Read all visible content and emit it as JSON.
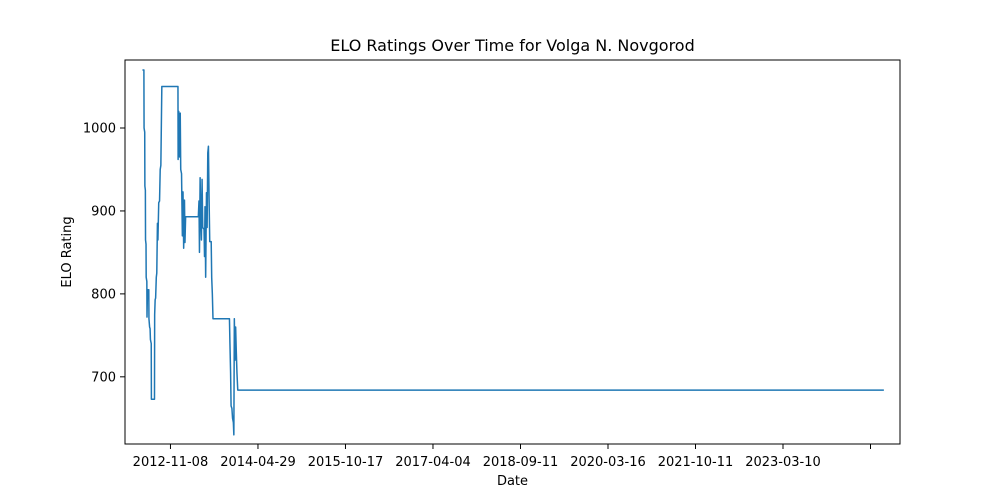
{
  "chart_data": {
    "type": "line",
    "title": "ELO Ratings Over Time for Volga N. Novgorod",
    "xlabel": "Date",
    "ylabel": "ELO Rating",
    "xlim": [
      "2012-02-03",
      "2025-02-10"
    ],
    "ylim": [
      619,
      1082
    ],
    "grid": false,
    "x_ticks": [
      "2012-11-08",
      "2014-04-29",
      "2015-10-17",
      "2017-04-04",
      "2018-09-11",
      "2020-03-16",
      "2021-10-11",
      "2023-03-10",
      ""
    ],
    "y_ticks": [
      700,
      800,
      900,
      1000
    ],
    "series": [
      {
        "color": "#1f77b4",
        "points": [
          [
            "2012-05-20",
            1070
          ],
          [
            "2012-05-29",
            1070
          ],
          [
            "2012-05-30",
            1000
          ],
          [
            "2012-06-03",
            995
          ],
          [
            "2012-06-04",
            930
          ],
          [
            "2012-06-07",
            925
          ],
          [
            "2012-06-08",
            865
          ],
          [
            "2012-06-11",
            860
          ],
          [
            "2012-06-12",
            820
          ],
          [
            "2012-06-16",
            815
          ],
          [
            "2012-06-17",
            772
          ],
          [
            "2012-06-20",
            805
          ],
          [
            "2012-06-28",
            805
          ],
          [
            "2012-06-29",
            770
          ],
          [
            "2012-07-03",
            760
          ],
          [
            "2012-07-06",
            758
          ],
          [
            "2012-07-08",
            745
          ],
          [
            "2012-07-13",
            740
          ],
          [
            "2012-07-14",
            673
          ],
          [
            "2012-08-02",
            673
          ],
          [
            "2012-08-03",
            775
          ],
          [
            "2012-08-06",
            793
          ],
          [
            "2012-08-09",
            795
          ],
          [
            "2012-08-13",
            820
          ],
          [
            "2012-08-16",
            825
          ],
          [
            "2012-08-20",
            885
          ],
          [
            "2012-08-23",
            865
          ],
          [
            "2012-08-28",
            910
          ],
          [
            "2012-09-02",
            912
          ],
          [
            "2012-09-06",
            950
          ],
          [
            "2012-09-10",
            955
          ],
          [
            "2012-09-16",
            1050
          ],
          [
            "2012-12-24",
            1050
          ],
          [
            "2012-12-25",
            962
          ],
          [
            "2012-12-29",
            1020
          ],
          [
            "2013-01-03",
            965
          ],
          [
            "2013-01-07",
            1018
          ],
          [
            "2013-01-10",
            950
          ],
          [
            "2013-01-15",
            945
          ],
          [
            "2013-01-20",
            870
          ],
          [
            "2013-01-24",
            923
          ],
          [
            "2013-01-28",
            855
          ],
          [
            "2013-02-02",
            913
          ],
          [
            "2013-02-05",
            862
          ],
          [
            "2013-02-09",
            893
          ],
          [
            "2013-04-28",
            893
          ],
          [
            "2013-05-02",
            912
          ],
          [
            "2013-05-05",
            850
          ],
          [
            "2013-05-09",
            940
          ],
          [
            "2013-05-13",
            893
          ],
          [
            "2013-05-17",
            865
          ],
          [
            "2013-05-21",
            938
          ],
          [
            "2013-05-25",
            880
          ],
          [
            "2013-06-02",
            878
          ],
          [
            "2013-06-05",
            845
          ],
          [
            "2013-06-08",
            905
          ],
          [
            "2013-06-12",
            820
          ],
          [
            "2013-06-17",
            922
          ],
          [
            "2013-06-21",
            880
          ],
          [
            "2013-06-25",
            970
          ],
          [
            "2013-06-29",
            978
          ],
          [
            "2013-07-03",
            915
          ],
          [
            "2013-07-07",
            863
          ],
          [
            "2013-07-16",
            863
          ],
          [
            "2013-07-19",
            820
          ],
          [
            "2013-07-23",
            800
          ],
          [
            "2013-07-27",
            770
          ],
          [
            "2013-11-05",
            770
          ],
          [
            "2013-11-08",
            740
          ],
          [
            "2013-11-12",
            705
          ],
          [
            "2013-11-15",
            665
          ],
          [
            "2013-11-20",
            662
          ],
          [
            "2013-11-24",
            650
          ],
          [
            "2013-11-29",
            645
          ],
          [
            "2013-12-02",
            630
          ],
          [
            "2013-12-05",
            770
          ],
          [
            "2013-12-09",
            720
          ],
          [
            "2013-12-13",
            760
          ],
          [
            "2013-12-17",
            730
          ],
          [
            "2013-12-21",
            705
          ],
          [
            "2013-12-26",
            684
          ],
          [
            "2024-11-03",
            684
          ]
        ]
      }
    ]
  }
}
